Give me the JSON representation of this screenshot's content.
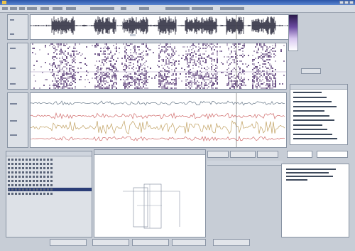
{
  "window": {
    "title": "",
    "accent": "#2b54a8"
  },
  "menu": {
    "item_count": 13
  },
  "waveform": {
    "color": "#1a1a2e"
  },
  "spectrogram": {
    "color": "#4a2a6a"
  },
  "tracks": {
    "pitch_color": "#d06a6a",
    "formant_color": "#c0a060",
    "signal_color": "#6a7a8a"
  },
  "info_panel": {
    "row_count": 11
  },
  "file_list": {
    "row_count": 9,
    "selected_row": 7
  },
  "plot_window": {
    "title": ""
  },
  "fields": {
    "left_value": "",
    "right_value": ""
  },
  "text_panel": {
    "line_count": 4
  },
  "bottom_buttons": {
    "count": 5
  }
}
